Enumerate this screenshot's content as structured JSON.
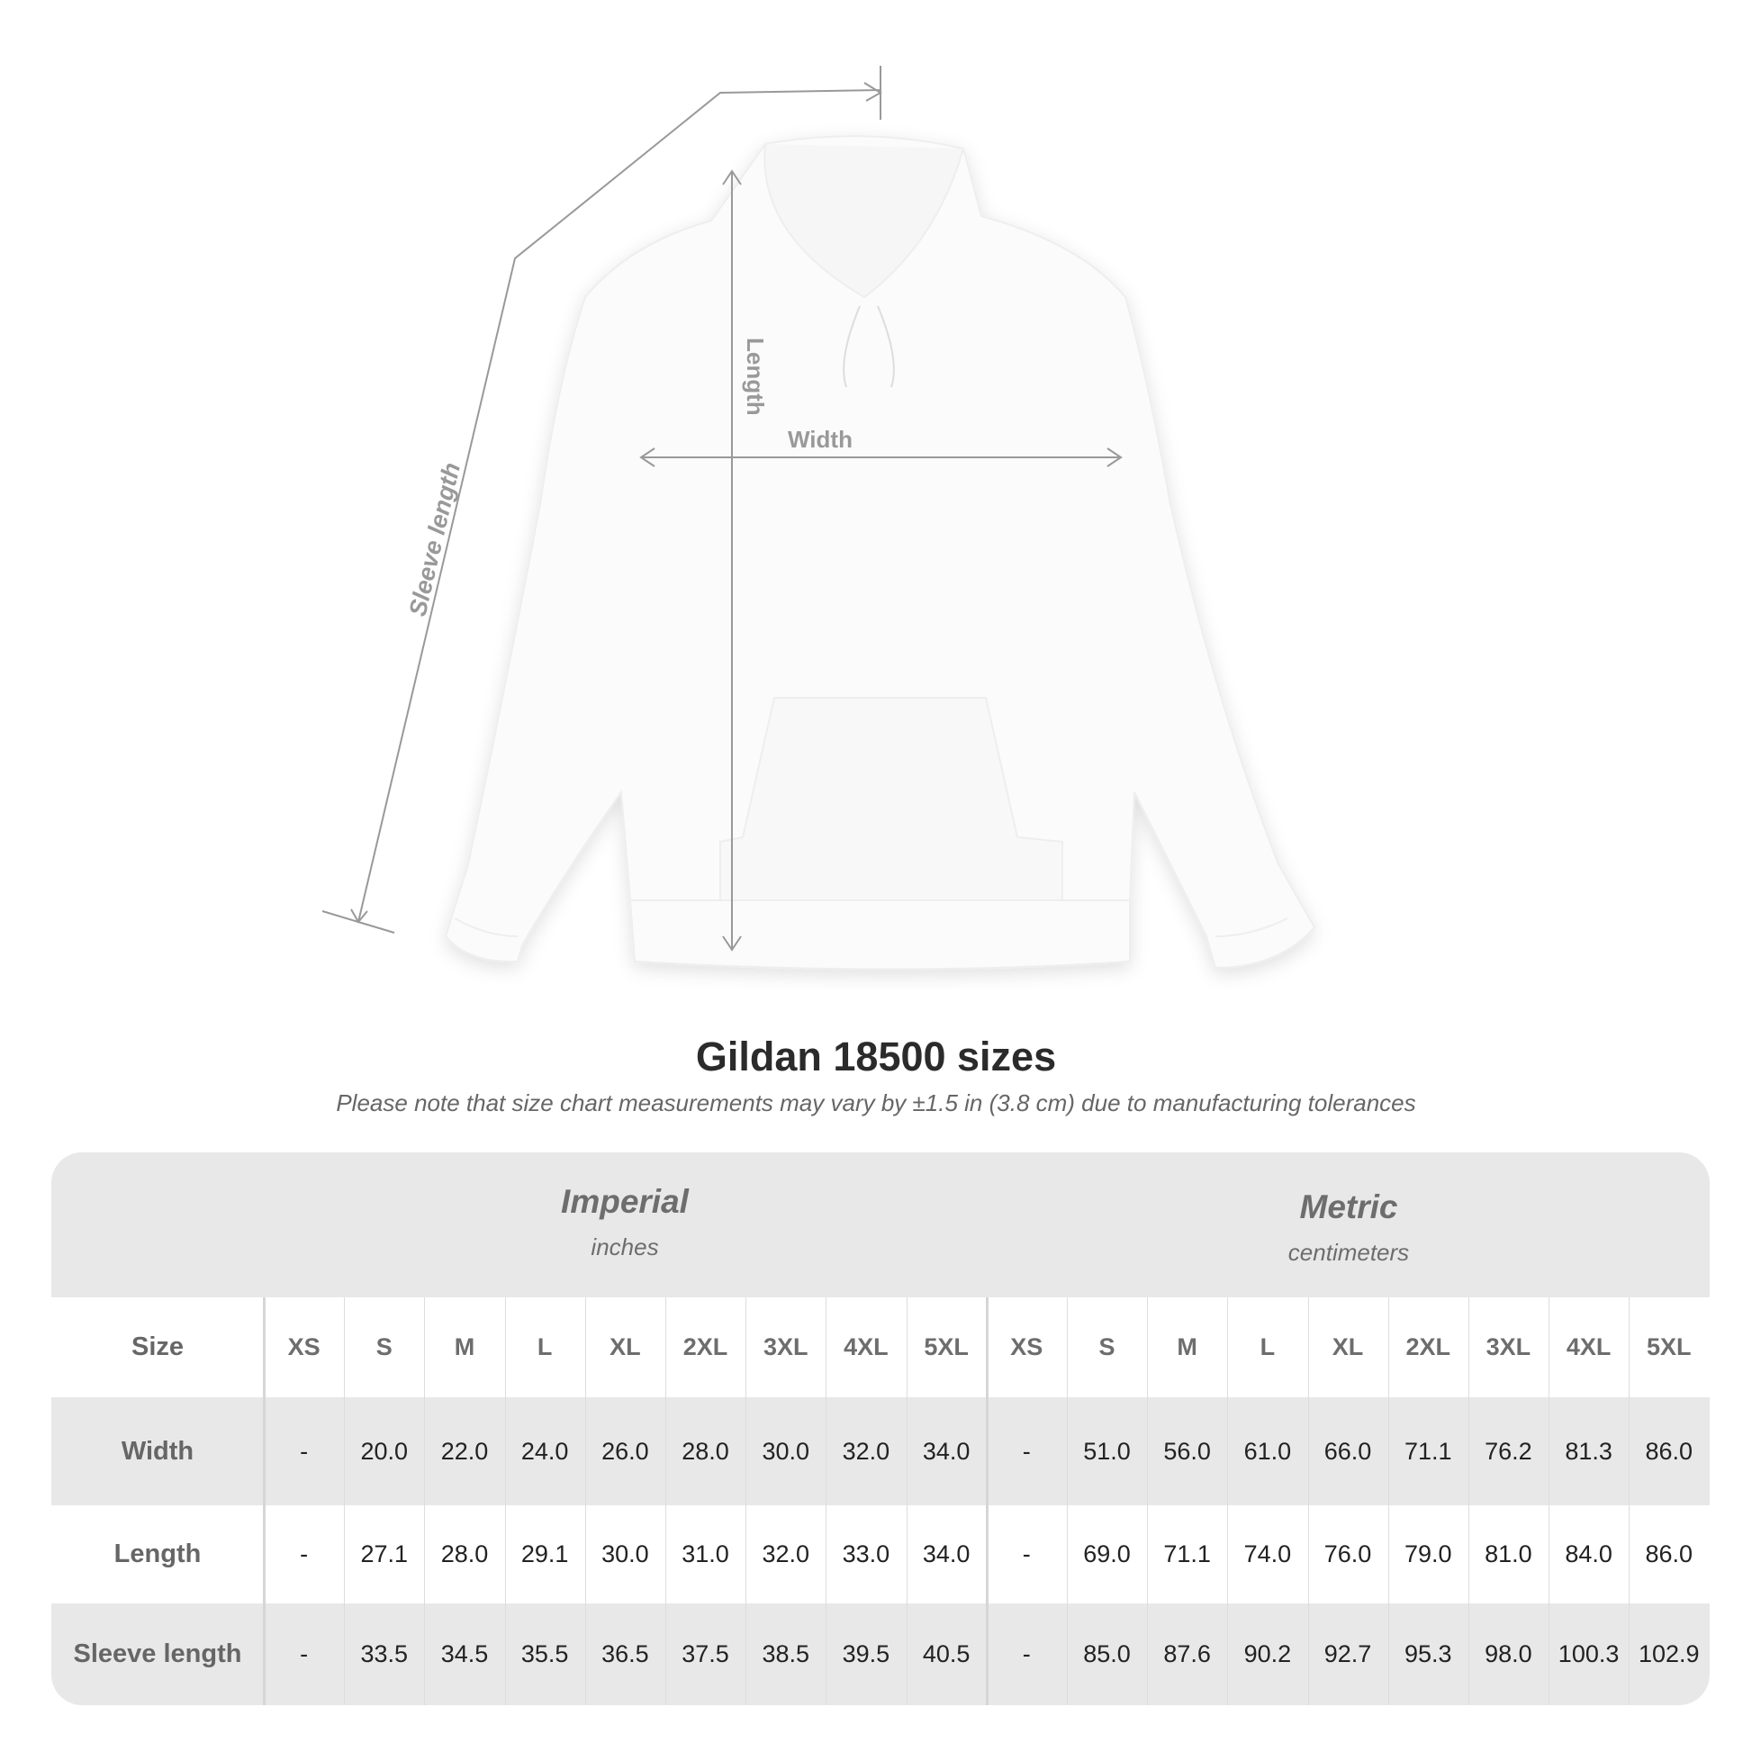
{
  "illustration": {
    "labels": {
      "length": "Length",
      "width": "Width",
      "sleeve_length": "Sleeve length"
    }
  },
  "title": "Gildan 18500 sizes",
  "note": "Please note that size chart measurements may vary by ±1.5 in (3.8 cm) due to manufacturing tolerances",
  "table": {
    "imperial": {
      "name": "Imperial",
      "unit": "inches"
    },
    "metric": {
      "name": "Metric",
      "unit": "centimeters"
    },
    "size_label": "Size",
    "sizes": [
      "XS",
      "S",
      "M",
      "L",
      "XL",
      "2XL",
      "3XL",
      "4XL",
      "5XL"
    ],
    "rows": [
      {
        "label": "Width",
        "imperial": [
          "-",
          "20.0",
          "22.0",
          "24.0",
          "26.0",
          "28.0",
          "30.0",
          "32.0",
          "34.0"
        ],
        "metric": [
          "-",
          "51.0",
          "56.0",
          "61.0",
          "66.0",
          "71.1",
          "76.2",
          "81.3",
          "86.0"
        ]
      },
      {
        "label": "Length",
        "imperial": [
          "-",
          "27.1",
          "28.0",
          "29.1",
          "30.0",
          "31.0",
          "32.0",
          "33.0",
          "34.0"
        ],
        "metric": [
          "-",
          "69.0",
          "71.1",
          "74.0",
          "76.0",
          "79.0",
          "81.0",
          "84.0",
          "86.0"
        ]
      },
      {
        "label": "Sleeve length",
        "imperial": [
          "-",
          "33.5",
          "34.5",
          "35.5",
          "36.5",
          "37.5",
          "38.5",
          "39.5",
          "40.5"
        ],
        "metric": [
          "-",
          "85.0",
          "87.6",
          "90.2",
          "92.7",
          "95.3",
          "98.0",
          "100.3",
          "102.9"
        ]
      }
    ]
  },
  "colors": {
    "band": "#e8e8e8",
    "label": "#666666",
    "measure_line": "#999999"
  }
}
